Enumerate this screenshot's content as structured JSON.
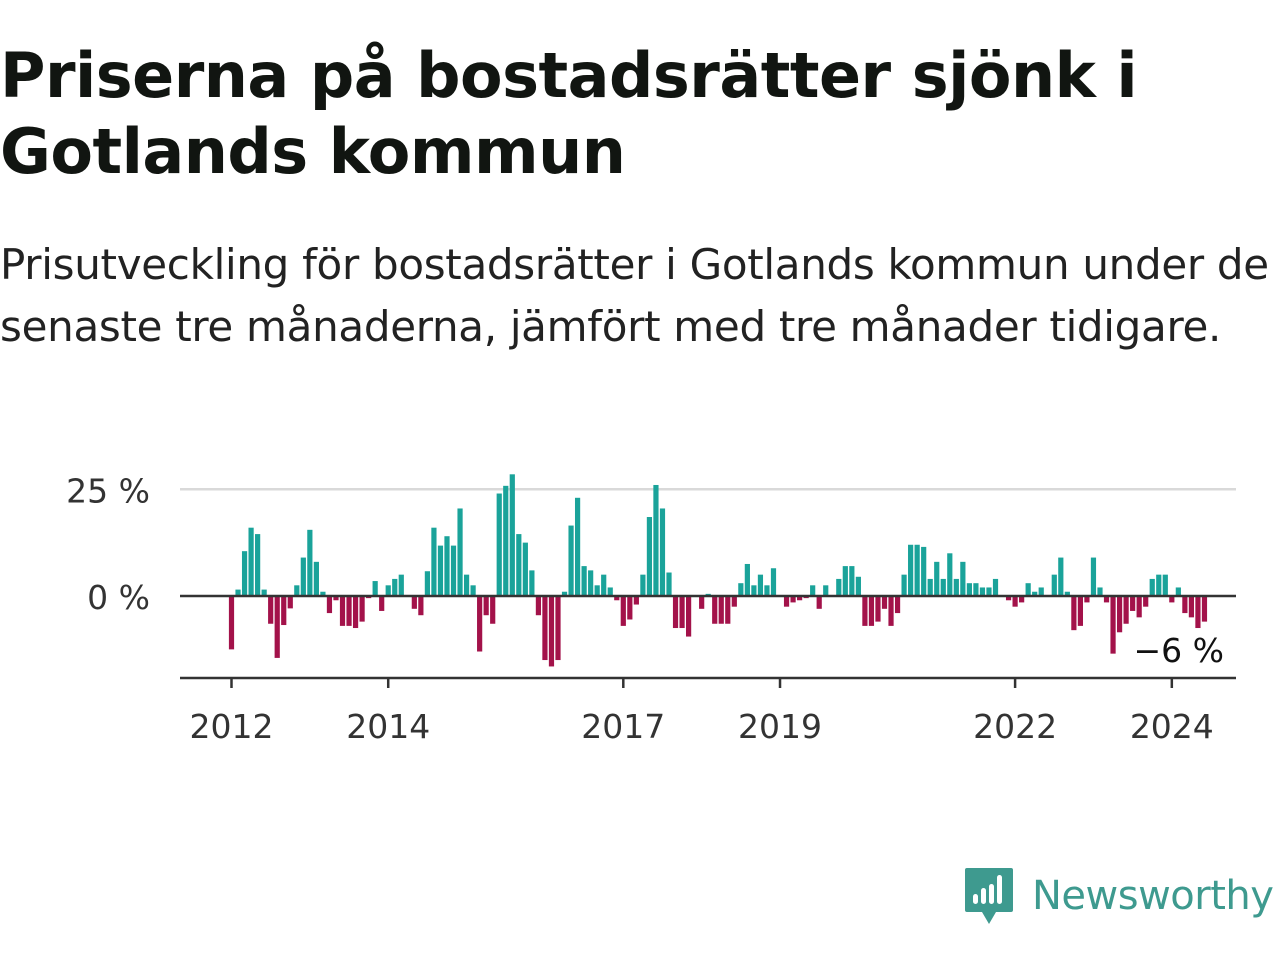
{
  "title": "Priserna på bostadsrätter sjönk i Gotlands kommun",
  "subtitle": "Prisutveckling för bostadsrätter i Gotlands kommun under de senaste tre månaderna, jämfört med tre månader tidigare.",
  "brand": {
    "name": "Newsworthy",
    "color": "#3e9a8f"
  },
  "colors": {
    "positive": "#1aa39a",
    "negative": "#a3124a",
    "axis": "#333333",
    "grid": "#d9d9d9",
    "text": "#333333"
  },
  "chart_data": {
    "type": "bar",
    "x_start": "2012-01",
    "frequency": "monthly",
    "ylim": [
      -19,
      27
    ],
    "yticks": [
      {
        "value": 25,
        "label": "25 %"
      },
      {
        "value": 0,
        "label": "0 %"
      }
    ],
    "xticks": [
      {
        "year": 2012,
        "label": "2012"
      },
      {
        "year": 2014,
        "label": "2014"
      },
      {
        "year": 2017,
        "label": "2017"
      },
      {
        "year": 2019,
        "label": "2019"
      },
      {
        "year": 2022,
        "label": "2022"
      },
      {
        "year": 2024,
        "label": "2024"
      }
    ],
    "annotation": {
      "label": "−6 %",
      "value": -6
    },
    "grid": true,
    "values": [
      -12.5,
      1.5,
      10.5,
      16,
      14.5,
      1.5,
      -6.5,
      -14.5,
      -6.8,
      -2.9,
      2.5,
      9,
      15.5,
      8,
      1,
      -4,
      -1,
      -7,
      -7,
      -7.5,
      -6,
      -0.5,
      3.5,
      -3.5,
      2.5,
      4,
      5,
      0,
      -3,
      -4.5,
      5.8,
      16,
      11.8,
      14,
      11.8,
      20.5,
      5,
      2.5,
      -13,
      -4.5,
      -6.5,
      24,
      25.8,
      28.5,
      14.5,
      12.5,
      6,
      -4.5,
      -15,
      -16.5,
      -15,
      1,
      16.5,
      23,
      7,
      6,
      2.5,
      5,
      2,
      -1,
      -7,
      -5.5,
      -2,
      5,
      18.5,
      26,
      20.5,
      5.5,
      -7.5,
      -7.5,
      -9.5,
      0,
      -3,
      0.5,
      -6.5,
      -6.5,
      -6.5,
      -2.5,
      3,
      7.5,
      2.5,
      5,
      2.5,
      6.5,
      0,
      -2.5,
      -1.5,
      -1,
      -0.5,
      2.5,
      -3,
      2.5,
      0,
      4,
      7,
      7,
      4.5,
      -7,
      -7,
      -6,
      -3,
      -7,
      -4,
      5,
      12,
      12,
      11.5,
      4,
      8,
      4,
      10,
      4,
      8,
      3,
      3,
      2,
      2,
      4,
      0,
      -1,
      -2.5,
      -1.5,
      3,
      1,
      2,
      0,
      5,
      9,
      1,
      -8,
      -7,
      -1.5,
      9,
      2,
      -1.5,
      -13.5,
      -8.5,
      -6.5,
      -3.5,
      -5,
      -2.5,
      4,
      5,
      5,
      -1.5,
      2,
      -4,
      -5,
      -7.5,
      -6
    ]
  }
}
